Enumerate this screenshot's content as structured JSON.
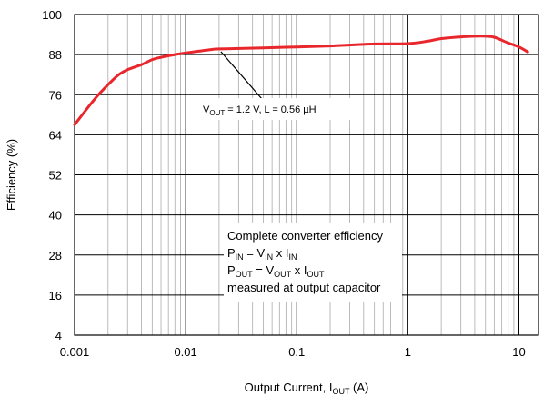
{
  "chart_data": {
    "type": "line",
    "xscale": "log",
    "xlim": [
      0.001,
      15
    ],
    "ylim": [
      4,
      100
    ],
    "grid": true,
    "xlabel": {
      "main": "Output Current, I",
      "sub": "OUT",
      "tail": " (A)"
    },
    "ylabel": "Efficiency (%)",
    "x_ticks": [
      {
        "value": 0.001,
        "label": "0.001"
      },
      {
        "value": 0.01,
        "label": "0.01"
      },
      {
        "value": 0.1,
        "label": "0.1"
      },
      {
        "value": 1,
        "label": "1"
      },
      {
        "value": 10,
        "label": "10"
      }
    ],
    "y_ticks": [
      {
        "value": 100,
        "label": "100"
      },
      {
        "value": 88,
        "label": "88"
      },
      {
        "value": 76,
        "label": "76"
      },
      {
        "value": 64,
        "label": "64"
      },
      {
        "value": 52,
        "label": "52"
      },
      {
        "value": 40,
        "label": "40"
      },
      {
        "value": 28,
        "label": "28"
      },
      {
        "value": 16,
        "label": "16"
      },
      {
        "value": 4,
        "label": "4"
      }
    ],
    "series": [
      {
        "color": "#e8262c",
        "x": [
          0.001,
          0.0015,
          0.002,
          0.0025,
          0.003,
          0.004,
          0.005,
          0.006,
          0.008,
          0.01,
          0.013,
          0.017,
          0.02,
          0.05,
          0.1,
          0.2,
          0.5,
          1,
          1.5,
          2,
          3,
          4,
          5,
          6,
          8,
          10,
          12
        ],
        "y": [
          67,
          74.5,
          79,
          82,
          83.5,
          85,
          86.5,
          87.2,
          88,
          88.5,
          89,
          89.5,
          89.7,
          90,
          90.3,
          90.6,
          91.2,
          91.3,
          92,
          92.8,
          93.3,
          93.5,
          93.5,
          93.2,
          91.5,
          90.3,
          88.8
        ]
      }
    ],
    "annotations": {
      "series_label": {
        "parts": [
          "V",
          "OUT",
          " = 1.2 V, L = 0.56 µH"
        ],
        "anchor_x": 0.02,
        "anchor_y": 89.7
      },
      "notes": [
        {
          "parts": [
            "Complete converter efficiency"
          ]
        },
        {
          "parts": [
            "P",
            "IN",
            " = V",
            "IN",
            " x I",
            "IN"
          ]
        },
        {
          "parts": [
            "P",
            "OUT",
            " = V",
            "OUT",
            " x I",
            "OUT"
          ]
        },
        {
          "parts": [
            "measured at output capacitor"
          ]
        }
      ]
    }
  }
}
